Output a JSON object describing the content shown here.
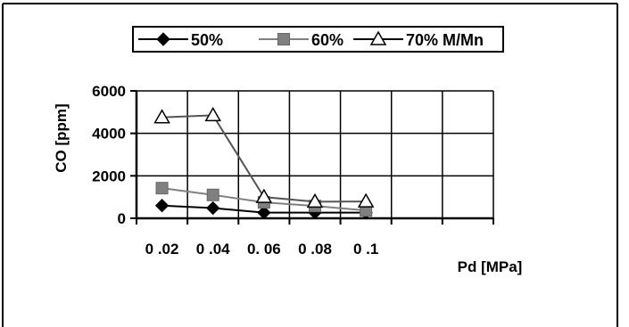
{
  "chart_data": {
    "type": "line",
    "categories": [
      "0 .02",
      "0 .04",
      "0. 06",
      "0 .08",
      "0 .1"
    ],
    "extra_categories": 2,
    "series": [
      {
        "name": "50%",
        "marker": "diamond",
        "color": "#000000",
        "line_color": "#000000",
        "values": [
          600,
          480,
          270,
          270,
          270
        ]
      },
      {
        "name": "60%",
        "marker": "square",
        "color": "#808080",
        "line_color": "#808080",
        "values": [
          1420,
          1100,
          750,
          580,
          370
        ]
      },
      {
        "name": "70% M/Mn",
        "marker": "triangle",
        "color": "#ffffff",
        "line_color": "#555555",
        "values": [
          4750,
          4850,
          1000,
          780,
          790
        ]
      }
    ],
    "xlabel": "Pd [MPa]",
    "ylabel": "CO [ppm]",
    "ylim": [
      0,
      6000
    ],
    "yticks": [
      0,
      2000,
      4000,
      6000
    ],
    "ytick_labels": [
      "0",
      "2000",
      "4000",
      "6000"
    ],
    "grid": true,
    "legend_position": "top"
  }
}
